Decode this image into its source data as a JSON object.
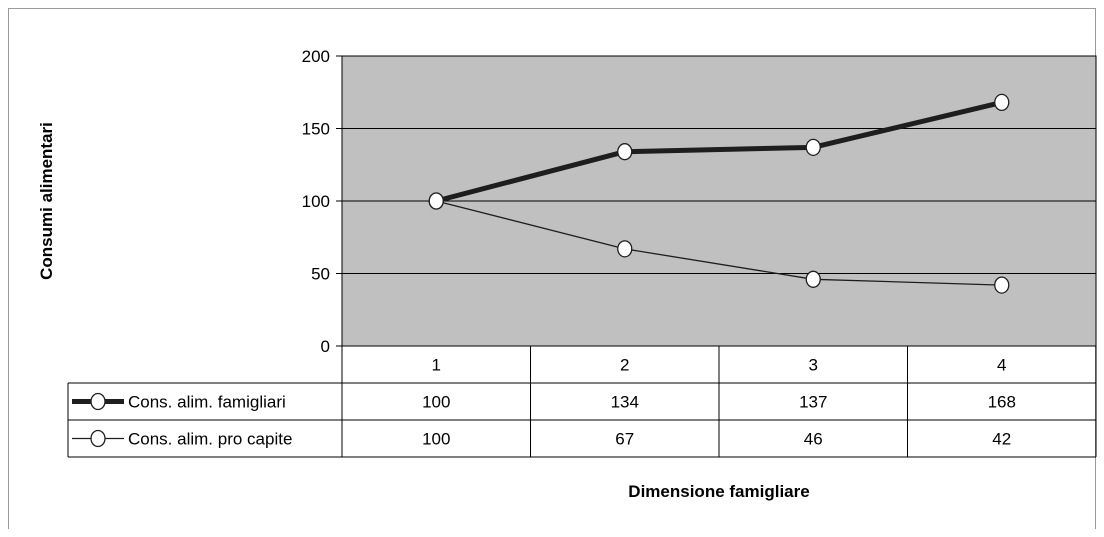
{
  "chart_data": {
    "type": "line",
    "categories": [
      "1",
      "2",
      "3",
      "4"
    ],
    "series": [
      {
        "name": "Cons. alim. famigliari",
        "values": [
          100,
          134,
          137,
          168
        ],
        "style": "thick"
      },
      {
        "name": "Cons. alim. pro capite",
        "values": [
          100,
          67,
          46,
          42
        ],
        "style": "thin"
      }
    ],
    "ylabel": "Consumi alimentari",
    "xlabel": "Dimensione famigliare",
    "ylim": [
      0,
      200
    ],
    "yticks": [
      "0",
      "50",
      "100",
      "150",
      "200"
    ],
    "grid": true,
    "legend": "data-table-left",
    "colors": {
      "plot_bg": "#c0c0c0",
      "line": "#1e1e1e",
      "marker_fill": "#ffffff"
    }
  }
}
